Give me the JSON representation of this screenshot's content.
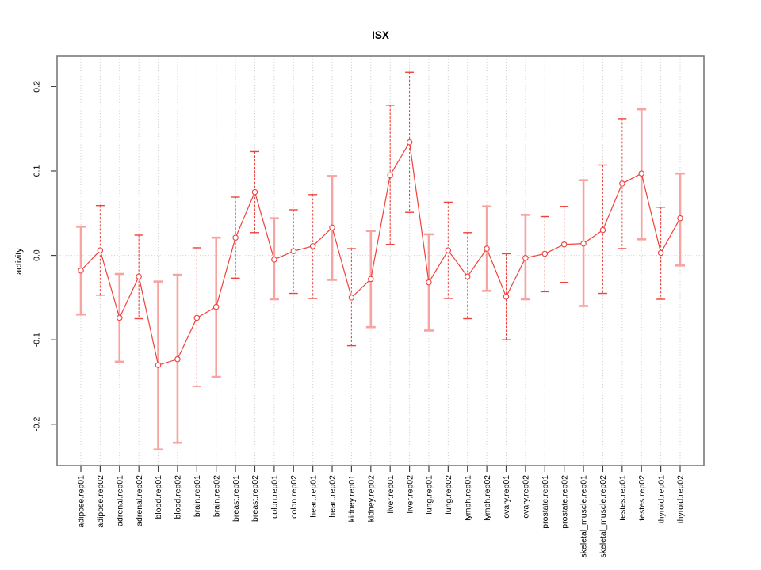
{
  "chart_data": {
    "type": "line",
    "title": "ISX",
    "xlabel": "",
    "ylabel": "activity",
    "legend": "none",
    "grid": "vertical dotted gridline per category, dotted horizontal line at y=0",
    "ylim": [
      -0.249,
      0.236
    ],
    "yticks": {
      "values": [
        -0.2,
        -0.1,
        0.0,
        0.1,
        0.2
      ],
      "labels": [
        "-0.2",
        "-0.1",
        "0.0",
        "0.1",
        "0.2"
      ]
    },
    "categories": [
      "adipose.rep01",
      "adipose.rep02",
      "adrenal.rep01",
      "adrenal.rep02",
      "blood.rep01",
      "blood.rep02",
      "brain.rep01",
      "brain.rep02",
      "breast.rep01",
      "breast.rep02",
      "colon.rep01",
      "colon.rep02",
      "heart.rep01",
      "heart.rep02",
      "kidney.rep01",
      "kidney.rep02",
      "liver.rep01",
      "liver.rep02",
      "lung.rep01",
      "lung.rep02",
      "lymph.rep01",
      "lymph.rep02",
      "ovary.rep01",
      "ovary.rep02",
      "prostate.rep01",
      "prostate.rep02",
      "skeletal_muscle.rep01",
      "skeletal_muscle.rep02",
      "testes.rep01",
      "testes.rep02",
      "thyroid.rep01",
      "thyroid.rep02"
    ],
    "series": [
      {
        "name": "activity",
        "marker": "open-circle",
        "values": [
          -0.018,
          0.006,
          -0.074,
          -0.025,
          -0.13,
          -0.123,
          -0.074,
          -0.061,
          0.021,
          0.075,
          -0.005,
          0.005,
          0.011,
          0.033,
          -0.05,
          -0.028,
          0.095,
          0.134,
          -0.032,
          0.006,
          -0.025,
          0.008,
          -0.049,
          -0.003,
          0.002,
          0.013,
          0.014,
          0.03,
          0.085,
          0.097,
          0.003,
          0.044
        ]
      }
    ],
    "error_low": [
      -0.07,
      -0.047,
      -0.126,
      -0.075,
      -0.23,
      -0.222,
      -0.155,
      -0.144,
      -0.027,
      0.027,
      -0.052,
      -0.045,
      -0.051,
      -0.029,
      -0.107,
      -0.085,
      0.013,
      0.051,
      -0.089,
      -0.051,
      -0.075,
      -0.042,
      -0.1,
      -0.052,
      -0.043,
      -0.032,
      -0.06,
      -0.045,
      0.008,
      0.019,
      -0.052,
      -0.012
    ],
    "error_high": [
      0.034,
      0.059,
      -0.022,
      0.024,
      -0.031,
      -0.023,
      0.009,
      0.021,
      0.069,
      0.123,
      0.044,
      0.054,
      0.072,
      0.094,
      0.008,
      0.029,
      0.178,
      0.217,
      0.025,
      0.063,
      0.027,
      0.058,
      0.002,
      0.048,
      0.046,
      0.058,
      0.089,
      0.107,
      0.162,
      0.173,
      0.057,
      0.097
    ],
    "error_bar_styles": [
      "solid",
      "dashed",
      "solid",
      "dashed",
      "solid",
      "solid",
      "dashed",
      "solid",
      "dashed",
      "dashed",
      "solid",
      "dashed",
      "dashed",
      "solid",
      "dashed",
      "solid",
      "dashed",
      "dashed",
      "solid",
      "dashed",
      "dashed",
      "solid",
      "dashed",
      "solid",
      "dashed",
      "dashed",
      "solid",
      "dashed",
      "dashed",
      "solid",
      "dashed",
      "solid"
    ],
    "colors": {
      "series_red": "#f0413c",
      "error_bar_pink": "#f7a3a0",
      "gridline_gray": "#c6c6c6",
      "zero_line_gray": "#cccccc",
      "frame_gray": "#7a7a7a",
      "tick_dark": "#404040",
      "text_black": "#000000",
      "background": "#ffffff",
      "marker_fill": "#ffffff"
    }
  }
}
